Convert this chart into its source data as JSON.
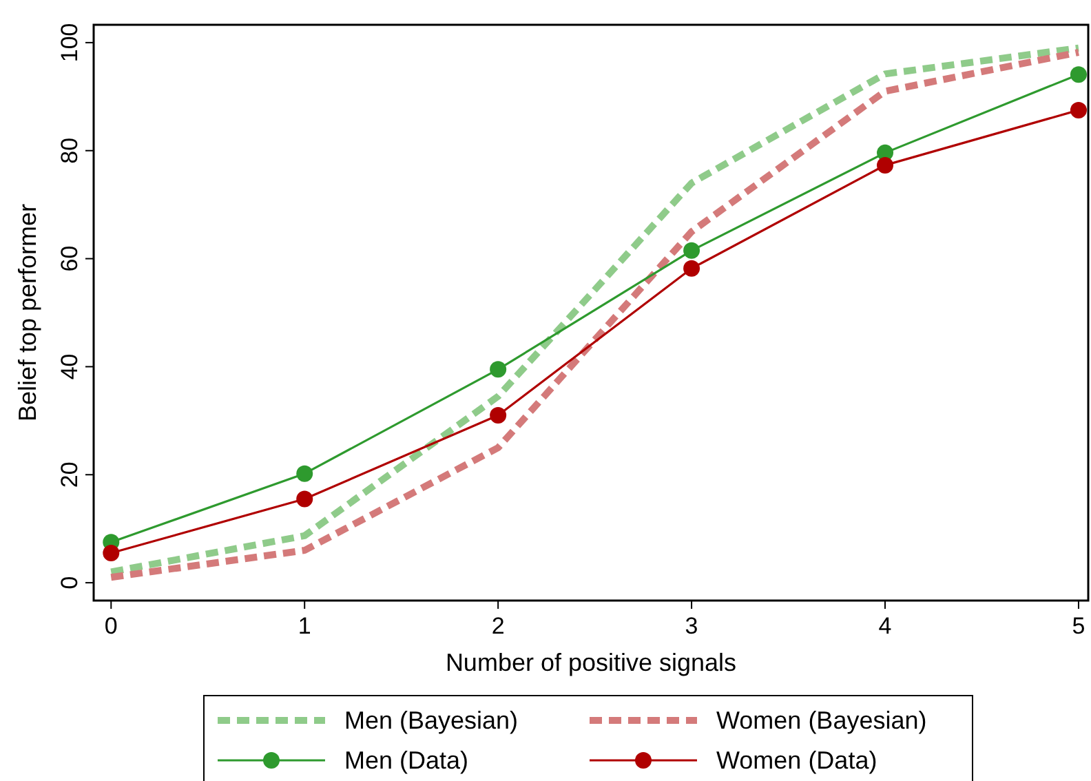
{
  "chart_data": {
    "type": "line",
    "xlabel": "Number of positive signals",
    "ylabel": "Belief top performer",
    "x": [
      0,
      1,
      2,
      3,
      4,
      5
    ],
    "xlim": [
      -0.09,
      5.05
    ],
    "xticks": [
      0,
      1,
      2,
      3,
      4,
      5
    ],
    "ylim": [
      -3.3,
      103.3
    ],
    "yticks": [
      0,
      20,
      40,
      60,
      80,
      100
    ],
    "grid": false,
    "legend": "bottom",
    "series": [
      {
        "name": "Men (Bayesian)",
        "color": "#8fcb8a",
        "values": [
          2,
          8.7,
          34.5,
          74,
          94.2,
          99
        ],
        "line_style": "dashed",
        "marker": "none"
      },
      {
        "name": "Women (Bayesian)",
        "color": "#d47a7a",
        "values": [
          1,
          6,
          25,
          65,
          91,
          98.2
        ],
        "line_style": "dashed",
        "marker": "none"
      },
      {
        "name": "Men (Data)",
        "color": "#2e9a2e",
        "values": [
          7.5,
          20.2,
          39.5,
          61.5,
          79.6,
          94.1
        ],
        "line_style": "solid",
        "marker": "circle"
      },
      {
        "name": "Women (Data)",
        "color": "#b00000",
        "values": [
          5.5,
          15.5,
          31,
          58.2,
          77.3,
          87.5
        ],
        "line_style": "solid",
        "marker": "circle"
      }
    ]
  }
}
